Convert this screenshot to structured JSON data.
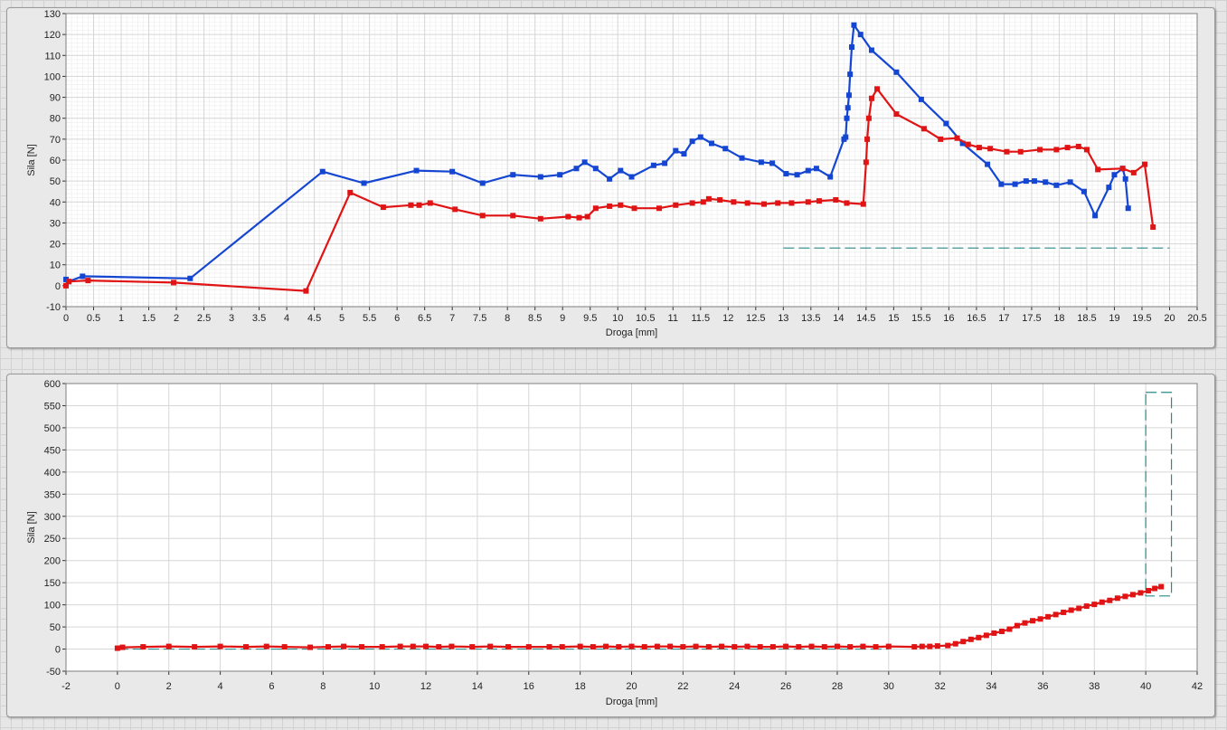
{
  "charts": [
    {
      "chart_data": {
        "type": "line",
        "xlabel": "Droga [mm]",
        "ylabel": "Sila [N]",
        "xlim": [
          0,
          20.5
        ],
        "ylim": [
          -10,
          130
        ],
        "xticks": [
          "0",
          "0.5",
          "1",
          "1.5",
          "2",
          "2.5",
          "3",
          "3.5",
          "4",
          "4.5",
          "5",
          "5.5",
          "6",
          "6.5",
          "7",
          "7.5",
          "8",
          "8.5",
          "9",
          "9.5",
          "10",
          "10.5",
          "11",
          "11.5",
          "12",
          "12.5",
          "13",
          "13.5",
          "14",
          "14.5",
          "15",
          "15.5",
          "16",
          "16.5",
          "17",
          "17.5",
          "18",
          "18.5",
          "19",
          "19.5",
          "20",
          "20.5"
        ],
        "yticks": [
          "-10",
          "0",
          "10",
          "20",
          "30",
          "40",
          "50",
          "60",
          "70",
          "80",
          "90",
          "100",
          "110",
          "120",
          "130"
        ],
        "grid": true,
        "series": [
          {
            "color": "#1446d2",
            "points": [
              [
                0,
                3
              ],
              [
                0.05,
                2
              ],
              [
                0.3,
                4.5
              ],
              [
                2.25,
                3.5
              ],
              [
                4.65,
                54.5
              ],
              [
                5.4,
                49
              ],
              [
                6.35,
                55
              ],
              [
                7,
                54.5
              ],
              [
                7.55,
                49
              ],
              [
                8.1,
                53
              ],
              [
                8.6,
                52
              ],
              [
                8.95,
                53
              ],
              [
                9.25,
                56
              ],
              [
                9.4,
                59
              ],
              [
                9.6,
                56
              ],
              [
                9.85,
                51
              ],
              [
                10.05,
                55
              ],
              [
                10.25,
                52
              ],
              [
                10.65,
                57.5
              ],
              [
                10.85,
                58.5
              ],
              [
                11.05,
                64.5
              ],
              [
                11.2,
                63
              ],
              [
                11.35,
                69
              ],
              [
                11.5,
                71
              ],
              [
                11.7,
                68
              ],
              [
                11.95,
                65.5
              ],
              [
                12.25,
                61
              ],
              [
                12.6,
                59
              ],
              [
                12.8,
                58.5
              ],
              [
                13.05,
                53.5
              ],
              [
                13.25,
                53
              ],
              [
                13.45,
                55
              ],
              [
                13.6,
                56
              ],
              [
                13.85,
                52
              ],
              [
                14.1,
                70
              ],
              [
                14.13,
                71
              ],
              [
                14.15,
                80
              ],
              [
                14.17,
                85
              ],
              [
                14.19,
                91
              ],
              [
                14.21,
                101
              ],
              [
                14.24,
                114
              ],
              [
                14.28,
                124.5
              ],
              [
                14.4,
                120
              ],
              [
                14.6,
                112.5
              ],
              [
                15.05,
                102
              ],
              [
                15.5,
                89
              ],
              [
                15.95,
                77.5
              ],
              [
                16.25,
                68
              ],
              [
                16.7,
                58
              ],
              [
                16.95,
                48.5
              ],
              [
                17.2,
                48.5
              ],
              [
                17.4,
                50
              ],
              [
                17.55,
                50
              ],
              [
                17.75,
                49.5
              ],
              [
                17.95,
                48
              ],
              [
                18.2,
                49.5
              ],
              [
                18.45,
                45
              ],
              [
                18.65,
                33.5
              ],
              [
                18.9,
                47
              ],
              [
                19.0,
                53
              ],
              [
                19.15,
                56
              ],
              [
                19.2,
                51
              ],
              [
                19.25,
                37
              ]
            ]
          },
          {
            "color": "#e01414",
            "points": [
              [
                0,
                0
              ],
              [
                0.05,
                2
              ],
              [
                0.4,
                2.5
              ],
              [
                1.95,
                1.5
              ],
              [
                4.35,
                -2.5
              ],
              [
                5.15,
                44.5
              ],
              [
                5.75,
                37.5
              ],
              [
                6.25,
                38.5
              ],
              [
                6.4,
                38.5
              ],
              [
                6.6,
                39.5
              ],
              [
                7.05,
                36.5
              ],
              [
                7.55,
                33.5
              ],
              [
                8.1,
                33.5
              ],
              [
                8.6,
                32
              ],
              [
                9.1,
                33
              ],
              [
                9.3,
                32.5
              ],
              [
                9.45,
                33
              ],
              [
                9.6,
                37
              ],
              [
                9.85,
                38
              ],
              [
                10.05,
                38.5
              ],
              [
                10.3,
                37
              ],
              [
                10.75,
                37
              ],
              [
                11.05,
                38.5
              ],
              [
                11.35,
                39.5
              ],
              [
                11.55,
                40
              ],
              [
                11.65,
                41.5
              ],
              [
                11.85,
                41
              ],
              [
                12.1,
                40
              ],
              [
                12.35,
                39.5
              ],
              [
                12.65,
                39
              ],
              [
                12.9,
                39.5
              ],
              [
                13.15,
                39.5
              ],
              [
                13.45,
                40
              ],
              [
                13.65,
                40.5
              ],
              [
                13.95,
                41
              ],
              [
                14.15,
                39.5
              ],
              [
                14.45,
                39
              ],
              [
                14.5,
                59
              ],
              [
                14.52,
                70
              ],
              [
                14.55,
                80
              ],
              [
                14.6,
                89.5
              ],
              [
                14.7,
                94
              ],
              [
                15.05,
                82
              ],
              [
                15.55,
                75
              ],
              [
                15.85,
                70
              ],
              [
                16.15,
                70.5
              ],
              [
                16.35,
                67.5
              ],
              [
                16.55,
                66
              ],
              [
                16.75,
                65.5
              ],
              [
                17.05,
                64
              ],
              [
                17.3,
                64
              ],
              [
                17.65,
                65
              ],
              [
                17.95,
                65
              ],
              [
                18.15,
                66
              ],
              [
                18.35,
                66.5
              ],
              [
                18.5,
                65
              ],
              [
                18.7,
                55.5
              ],
              [
                19.15,
                56
              ],
              [
                19.35,
                54
              ],
              [
                19.55,
                58
              ],
              [
                19.7,
                28
              ]
            ]
          }
        ],
        "cursor_line": {
          "y": 18,
          "x_start": 13,
          "x_end": 20,
          "color": "#2a8a8a"
        }
      }
    },
    {
      "chart_data": {
        "type": "line",
        "xlabel": "Droga [mm]",
        "ylabel": "Sila [N]",
        "xlim": [
          -2,
          42
        ],
        "ylim": [
          -50,
          600
        ],
        "xticks": [
          "-2",
          "0",
          "2",
          "4",
          "6",
          "8",
          "10",
          "12",
          "14",
          "16",
          "18",
          "20",
          "22",
          "24",
          "26",
          "28",
          "30",
          "32",
          "34",
          "36",
          "38",
          "40",
          "42"
        ],
        "yticks": [
          "-50",
          "0",
          "50",
          "100",
          "150",
          "200",
          "250",
          "300",
          "350",
          "400",
          "450",
          "500",
          "550",
          "600"
        ],
        "grid": true,
        "series": [
          {
            "color": "#e01414",
            "points": [
              [
                0,
                2
              ],
              [
                0.2,
                4
              ],
              [
                1,
                5
              ],
              [
                2,
                6
              ],
              [
                3,
                5
              ],
              [
                4,
                6
              ],
              [
                5,
                5
              ],
              [
                5.8,
                6
              ],
              [
                6.5,
                5
              ],
              [
                7.5,
                4
              ],
              [
                8.2,
                5
              ],
              [
                8.8,
                6
              ],
              [
                9.5,
                5
              ],
              [
                10.3,
                5
              ],
              [
                11,
                6
              ],
              [
                11.5,
                6
              ],
              [
                12,
                6
              ],
              [
                12.5,
                5
              ],
              [
                13,
                6
              ],
              [
                13.8,
                5
              ],
              [
                14.5,
                6
              ],
              [
                15.2,
                5
              ],
              [
                16,
                5
              ],
              [
                16.8,
                5
              ],
              [
                17.3,
                5
              ],
              [
                18,
                6
              ],
              [
                18.5,
                5
              ],
              [
                19,
                6
              ],
              [
                19.5,
                5
              ],
              [
                20,
                6
              ],
              [
                20.5,
                5
              ],
              [
                21,
                6
              ],
              [
                21.5,
                6
              ],
              [
                22,
                5
              ],
              [
                22.5,
                6
              ],
              [
                23,
                5
              ],
              [
                23.5,
                6
              ],
              [
                24,
                5
              ],
              [
                24.5,
                6
              ],
              [
                25,
                5
              ],
              [
                25.5,
                5
              ],
              [
                26,
                6
              ],
              [
                26.5,
                5
              ],
              [
                27,
                6
              ],
              [
                27.5,
                5
              ],
              [
                28,
                6
              ],
              [
                28.5,
                5
              ],
              [
                29,
                6
              ],
              [
                29.5,
                5
              ],
              [
                30,
                6
              ],
              [
                31,
                5
              ],
              [
                31.3,
                6
              ],
              [
                31.6,
                6
              ],
              [
                31.9,
                7
              ],
              [
                32.3,
                8
              ],
              [
                32.6,
                12
              ],
              [
                32.9,
                17
              ],
              [
                33.2,
                22
              ],
              [
                33.5,
                26
              ],
              [
                33.8,
                31
              ],
              [
                34.1,
                36
              ],
              [
                34.4,
                40
              ],
              [
                34.7,
                45
              ],
              [
                35,
                53
              ],
              [
                35.3,
                59
              ],
              [
                35.6,
                64
              ],
              [
                35.9,
                68
              ],
              [
                36.2,
                73
              ],
              [
                36.5,
                78
              ],
              [
                36.8,
                83
              ],
              [
                37.1,
                88
              ],
              [
                37.4,
                92
              ],
              [
                37.7,
                97
              ],
              [
                38,
                101
              ],
              [
                38.3,
                106
              ],
              [
                38.6,
                110
              ],
              [
                38.9,
                115
              ],
              [
                39.2,
                119
              ],
              [
                39.5,
                123
              ],
              [
                39.8,
                127
              ],
              [
                40.1,
                132
              ],
              [
                40.35,
                137
              ],
              [
                40.6,
                141
              ]
            ]
          }
        ],
        "cursor_rect": {
          "x_start": 40,
          "x_end": 41,
          "y_start": 120,
          "y_end": 580,
          "color": "#2a8a8a"
        },
        "cursor_line": {
          "y": 0,
          "x_start": 0,
          "x_end": 30,
          "color": "#2a8a8a"
        }
      }
    }
  ]
}
